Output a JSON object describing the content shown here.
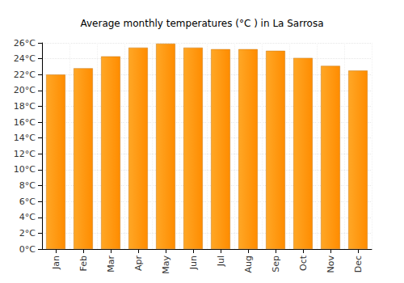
{
  "chart_data": {
    "type": "bar",
    "title": "Average monthly temperatures (°C ) in La Sarrosa",
    "categories": [
      "Jan",
      "Feb",
      "Mar",
      "Apr",
      "May",
      "Jun",
      "Jul",
      "Aug",
      "Sep",
      "Oct",
      "Nov",
      "Dec"
    ],
    "values": [
      22.0,
      22.8,
      24.3,
      25.4,
      25.9,
      25.4,
      25.2,
      25.2,
      25.0,
      24.1,
      23.1,
      22.5
    ],
    "color": "#ffa726",
    "ylim": [
      0,
      26
    ],
    "yticks": [
      {
        "value": 0,
        "label": "0°C"
      },
      {
        "value": 2,
        "label": "2°C"
      },
      {
        "value": 4,
        "label": "4°C"
      },
      {
        "value": 6,
        "label": "6°C"
      },
      {
        "value": 8,
        "label": "8°C"
      },
      {
        "value": 10,
        "label": "10°C"
      },
      {
        "value": 12,
        "label": "12°C"
      },
      {
        "value": 14,
        "label": "14°C"
      },
      {
        "value": 16,
        "label": "16°C"
      },
      {
        "value": 18,
        "label": "18°C"
      },
      {
        "value": 20,
        "label": "20°C"
      },
      {
        "value": 22,
        "label": "22°C"
      },
      {
        "value": 24,
        "label": "24°C"
      },
      {
        "value": 26,
        "label": "26°C"
      }
    ],
    "grid": true
  }
}
